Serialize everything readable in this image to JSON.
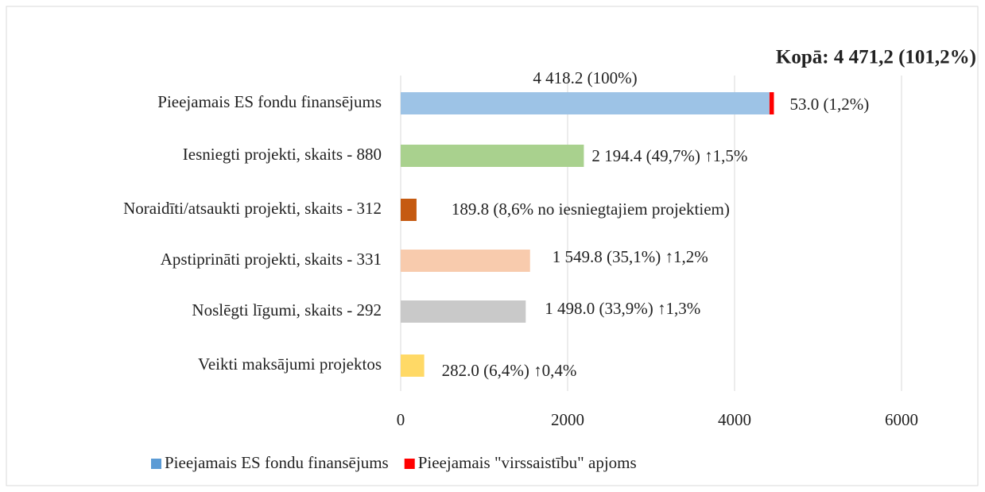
{
  "chart_data": {
    "type": "bar",
    "orientation": "horizontal",
    "stacked": true,
    "annotation": "Kopā: 4 471,2 (101,2%)",
    "categories": [
      "Pieejamais ES fondu finansējums",
      "Iesniegti projekti, skaits - 880",
      "Noraidīti/atsaukti projekti, skaits - 312",
      "Apstiprināti projekti, skaits - 331",
      "Noslēgti līgumi, skaits - 292",
      "Veikti maksājumi projektos"
    ],
    "series": [
      {
        "name": "Pieejamais ES fondu finansējums",
        "color": "#5b9bd5",
        "colors": [
          "#9dc3e6",
          "#a9d18e",
          "#c55a11",
          "#f8cbad",
          "#c9c9c9",
          "#ffd966"
        ],
        "values": [
          4418.2,
          2194.4,
          189.8,
          1549.8,
          1498.0,
          282.0
        ],
        "value_labels": [
          "4 418.2 (100%)",
          "2 194.4 (49,7%) ↑1,5%",
          "189.8 (8,6% no iesniegtajiem projektiem)",
          "1 549.8 (35,1%) ↑1,2%",
          "1 498.0 (33,9%) ↑1,3%",
          "282.0 (6,4%) ↑0,4%"
        ]
      },
      {
        "name": "Pieejamais \"virssaistību\" apjoms",
        "color": "#ff0000",
        "values": [
          53.0,
          null,
          null,
          null,
          null,
          null
        ],
        "value_labels": [
          "53.0 (1,2%)",
          null,
          null,
          null,
          null,
          null
        ]
      }
    ],
    "xlim": [
      0,
      6000
    ],
    "xticks": [
      0,
      2000,
      4000,
      6000
    ],
    "grid": true,
    "legend": "bottom"
  }
}
